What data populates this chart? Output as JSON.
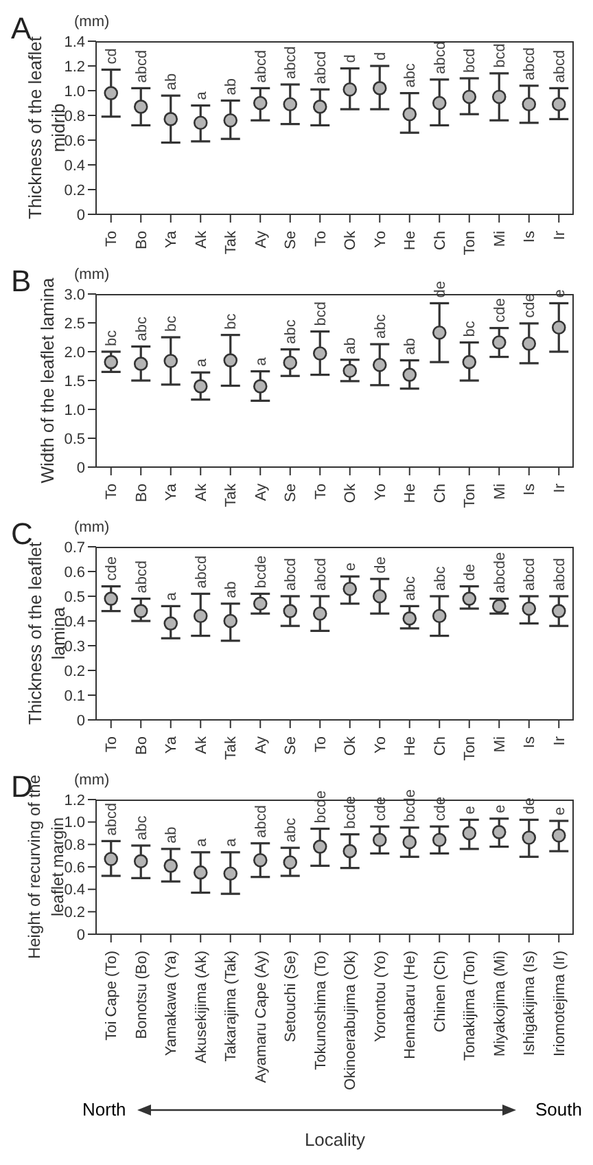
{
  "chart_data": [
    {
      "type": "scatter",
      "title": "A",
      "ylabel": "Thickness of the leaflet midrib",
      "annotations": [
        "(mm)"
      ],
      "marker": "circle",
      "color": "#b4b4b4",
      "categories": [
        "To",
        "Bo",
        "Ya",
        "Ak",
        "Tak",
        "Ay",
        "Se",
        "To",
        "Ok",
        "Yo",
        "He",
        "Ch",
        "Ton",
        "Mi",
        "Is",
        "Ir"
      ],
      "values": [
        0.98,
        0.87,
        0.77,
        0.74,
        0.76,
        0.9,
        0.89,
        0.87,
        1.01,
        1.02,
        0.81,
        0.9,
        0.95,
        0.95,
        0.89,
        0.89
      ],
      "errors": [
        [
          0.79,
          1.17
        ],
        [
          0.72,
          1.02
        ],
        [
          0.58,
          0.96
        ],
        [
          0.59,
          0.88
        ],
        [
          0.61,
          0.92
        ],
        [
          0.76,
          1.02
        ],
        [
          0.73,
          1.05
        ],
        [
          0.72,
          1.01
        ],
        [
          0.85,
          1.18
        ],
        [
          0.85,
          1.2
        ],
        [
          0.66,
          0.98
        ],
        [
          0.72,
          1.09
        ],
        [
          0.81,
          1.1
        ],
        [
          0.76,
          1.14
        ],
        [
          0.74,
          1.04
        ],
        [
          0.77,
          1.02
        ]
      ],
      "value_labels": [
        "cd",
        "abcd",
        "ab",
        "a",
        "ab",
        "abcd",
        "abcd",
        "abcd",
        "d",
        "d",
        "abc",
        "abcd",
        "bcd",
        "bcd",
        "abcd",
        "abcd"
      ],
      "ylim": [
        0,
        1.4
      ],
      "yticks": [
        0,
        0.2,
        0.4,
        0.6,
        0.8,
        {
          "value": 1,
          "label": "1.0"
        },
        1.2,
        1.4
      ]
    },
    {
      "type": "scatter",
      "title": "B",
      "ylabel": "Width of the leaflet lamina",
      "annotations": [
        "(mm)"
      ],
      "marker": "circle",
      "color": "#b4b4b4",
      "categories": [
        "To",
        "Bo",
        "Ya",
        "Ak",
        "Tak",
        "Ay",
        "Se",
        "To",
        "Ok",
        "Yo",
        "He",
        "Ch",
        "Ton",
        "Mi",
        "Is",
        "Ir"
      ],
      "values": [
        1.82,
        1.79,
        1.84,
        1.4,
        1.85,
        1.4,
        1.81,
        1.97,
        1.67,
        1.77,
        1.6,
        2.33,
        1.82,
        2.16,
        2.14,
        2.42
      ],
      "errors": [
        [
          1.65,
          2.0
        ],
        [
          1.5,
          2.09
        ],
        [
          1.43,
          2.25
        ],
        [
          1.17,
          1.64
        ],
        [
          1.41,
          2.29
        ],
        [
          1.15,
          1.66
        ],
        [
          1.58,
          2.04
        ],
        [
          1.6,
          2.35
        ],
        [
          1.49,
          1.86
        ],
        [
          1.42,
          2.13
        ],
        [
          1.36,
          1.85
        ],
        [
          1.82,
          2.84
        ],
        [
          1.5,
          2.16
        ],
        [
          1.91,
          2.41
        ],
        [
          1.8,
          2.49
        ],
        [
          2.0,
          2.84
        ]
      ],
      "value_labels": [
        "bc",
        "abc",
        "bc",
        "a",
        "bc",
        "a",
        "abc",
        "bcd",
        "ab",
        "abc",
        "ab",
        "de",
        "bc",
        "cde",
        "cde",
        "e"
      ],
      "ylim": [
        0,
        3
      ],
      "yticks": [
        0,
        0.5,
        {
          "value": 1,
          "label": "1.0"
        },
        1.5,
        {
          "value": 2,
          "label": "2.0"
        },
        2.5,
        {
          "value": 3,
          "label": "3.0"
        }
      ]
    },
    {
      "type": "scatter",
      "title": "C",
      "ylabel": "Thickness of the leaflet lamina",
      "annotations": [
        "(mm)"
      ],
      "marker": "circle",
      "color": "#b4b4b4",
      "categories": [
        "To",
        "Bo",
        "Ya",
        "Ak",
        "Tak",
        "Ay",
        "Se",
        "To",
        "Ok",
        "Yo",
        "He",
        "Ch",
        "Ton",
        "Mi",
        "Is",
        "Ir"
      ],
      "values": [
        0.49,
        0.44,
        0.39,
        0.42,
        0.4,
        0.47,
        0.44,
        0.43,
        0.53,
        0.5,
        0.41,
        0.42,
        0.49,
        0.46,
        0.45,
        0.44
      ],
      "errors": [
        [
          0.44,
          0.54
        ],
        [
          0.4,
          0.49
        ],
        [
          0.33,
          0.46
        ],
        [
          0.34,
          0.51
        ],
        [
          0.32,
          0.47
        ],
        [
          0.43,
          0.51
        ],
        [
          0.38,
          0.5
        ],
        [
          0.36,
          0.5
        ],
        [
          0.47,
          0.58
        ],
        [
          0.43,
          0.57
        ],
        [
          0.37,
          0.46
        ],
        [
          0.34,
          0.5
        ],
        [
          0.45,
          0.54
        ],
        [
          0.43,
          0.49
        ],
        [
          0.39,
          0.5
        ],
        [
          0.38,
          0.5
        ]
      ],
      "value_labels": [
        "cde",
        "abcd",
        "a",
        "abcd",
        "ab",
        "bcde",
        "abcd",
        "abcd",
        "e",
        "de",
        "abc",
        "abc",
        "de",
        "abcde",
        "abcd",
        "abcd"
      ],
      "ylim": [
        0,
        0.7
      ],
      "yticks": [
        0,
        0.1,
        0.2,
        0.3,
        0.4,
        0.5,
        0.6,
        0.7
      ]
    },
    {
      "type": "scatter",
      "title": "D",
      "ylabel": "Height of recurving of the leaflet margin",
      "xlabel": "Locality",
      "annotations": [
        "(mm)",
        "North",
        "South"
      ],
      "marker": "circle",
      "color": "#b4b4b4",
      "categories": [
        "Toi Cape (To)",
        "Bonotsu (Bo)",
        "Yamakawa (Ya)",
        "Akusekijima (Ak)",
        "Takarajima (Tak)",
        "Ayamaru Cape (Ay)",
        "Setouchi (Se)",
        "Tokunoshima (To)",
        "Okinoerabujima (Ok)",
        "Yorontou (Yo)",
        "Hennabaru (He)",
        "Chinen (Ch)",
        "Tonakijima (Ton)",
        "Miyakojima (Mi)",
        "Ishigakijima (Is)",
        "Iriomotejima (Ir)"
      ],
      "values": [
        0.67,
        0.65,
        0.61,
        0.55,
        0.54,
        0.66,
        0.64,
        0.78,
        0.74,
        0.84,
        0.82,
        0.84,
        0.9,
        0.91,
        0.86,
        0.88
      ],
      "errors": [
        [
          0.52,
          0.83
        ],
        [
          0.5,
          0.79
        ],
        [
          0.47,
          0.76
        ],
        [
          0.37,
          0.73
        ],
        [
          0.36,
          0.73
        ],
        [
          0.51,
          0.81
        ],
        [
          0.52,
          0.77
        ],
        [
          0.61,
          0.94
        ],
        [
          0.59,
          0.89
        ],
        [
          0.72,
          0.96
        ],
        [
          0.69,
          0.95
        ],
        [
          0.72,
          0.96
        ],
        [
          0.76,
          1.02
        ],
        [
          0.78,
          1.03
        ],
        [
          0.69,
          1.02
        ],
        [
          0.74,
          1.01
        ]
      ],
      "value_labels": [
        "abcd",
        "abc",
        "ab",
        "a",
        "a",
        "abcd",
        "abc",
        "bcde",
        "bcde",
        "cde",
        "bcde",
        "cde",
        "e",
        "e",
        "de",
        "e"
      ],
      "ylim": [
        0,
        1.2
      ],
      "yticks": [
        0,
        0.2,
        0.4,
        0.6,
        0.8,
        {
          "value": 1,
          "label": "1.0"
        },
        1.2
      ]
    }
  ]
}
